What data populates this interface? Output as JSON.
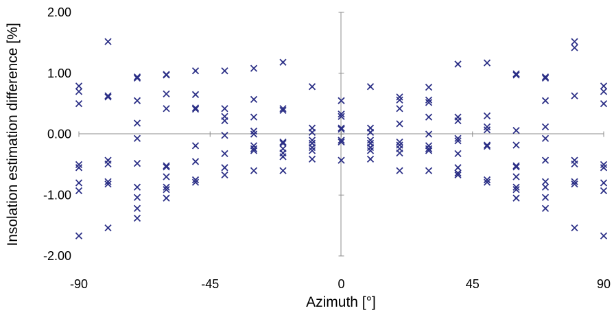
{
  "chart_data": {
    "type": "scatter",
    "xlabel": "Azimuth [°]",
    "ylabel": "Insolation estimation difference [%]",
    "xlim": [
      -90,
      90
    ],
    "ylim": [
      -2,
      2
    ],
    "x_ticks": [
      "-90",
      "-45",
      "0",
      "45",
      "90"
    ],
    "y_ticks": [
      "2.00",
      "1.00",
      "0.00",
      "-1.00",
      "-2.00"
    ],
    "grid": false,
    "marker": "x",
    "marker_color": "#2b2f86",
    "series": [
      {
        "points": [
          [
            -90,
            0.79
          ],
          [
            -90,
            0.7
          ],
          [
            -90,
            0.5
          ],
          [
            -90,
            -0.5
          ],
          [
            -90,
            -0.55
          ],
          [
            -90,
            -0.8
          ],
          [
            -90,
            -0.93
          ],
          [
            -90,
            -1.67
          ],
          [
            -80,
            1.52
          ],
          [
            -80,
            0.63
          ],
          [
            -80,
            0.61
          ],
          [
            -80,
            -0.43
          ],
          [
            -80,
            -0.49
          ],
          [
            -80,
            -0.78
          ],
          [
            -80,
            -0.82
          ],
          [
            -80,
            -1.54
          ],
          [
            -70,
            0.94
          ],
          [
            -70,
            0.92
          ],
          [
            -70,
            0.55
          ],
          [
            -70,
            0.18
          ],
          [
            -70,
            -0.07
          ],
          [
            -70,
            -0.48
          ],
          [
            -70,
            -0.87
          ],
          [
            -70,
            -1.04
          ],
          [
            -70,
            -1.22
          ],
          [
            -70,
            -1.38
          ],
          [
            -60,
            0.98
          ],
          [
            -60,
            0.97
          ],
          [
            -60,
            0.66
          ],
          [
            -60,
            0.42
          ],
          [
            -60,
            -0.52
          ],
          [
            -60,
            -0.54
          ],
          [
            -60,
            -0.7
          ],
          [
            -60,
            -0.87
          ],
          [
            -60,
            -0.91
          ],
          [
            -60,
            -1.05
          ],
          [
            -50,
            1.04
          ],
          [
            -50,
            0.65
          ],
          [
            -50,
            0.43
          ],
          [
            -50,
            0.41
          ],
          [
            -50,
            -0.19
          ],
          [
            -50,
            -0.45
          ],
          [
            -50,
            -0.75
          ],
          [
            -50,
            -0.79
          ],
          [
            -40,
            1.04
          ],
          [
            -40,
            0.42
          ],
          [
            -40,
            0.29
          ],
          [
            -40,
            0.22
          ],
          [
            -40,
            -0.02
          ],
          [
            -40,
            -0.32
          ],
          [
            -40,
            -0.55
          ],
          [
            -40,
            -0.67
          ],
          [
            -30,
            1.08
          ],
          [
            -30,
            0.57
          ],
          [
            -30,
            0.28
          ],
          [
            -30,
            0.05
          ],
          [
            -30,
            0.0
          ],
          [
            -30,
            -0.19
          ],
          [
            -30,
            -0.24
          ],
          [
            -30,
            -0.27
          ],
          [
            -30,
            -0.6
          ],
          [
            -20,
            1.18
          ],
          [
            -20,
            0.42
          ],
          [
            -20,
            0.39
          ],
          [
            -20,
            -0.13
          ],
          [
            -20,
            -0.15
          ],
          [
            -20,
            -0.24
          ],
          [
            -20,
            -0.31
          ],
          [
            -20,
            -0.37
          ],
          [
            -20,
            -0.6
          ],
          [
            -10,
            0.78
          ],
          [
            -10,
            0.1
          ],
          [
            -10,
            0.03
          ],
          [
            -10,
            -0.1
          ],
          [
            -10,
            -0.15
          ],
          [
            -10,
            -0.22
          ],
          [
            -10,
            -0.27
          ],
          [
            -10,
            -0.41
          ],
          [
            0,
            0.55
          ],
          [
            0,
            0.33
          ],
          [
            0,
            0.29
          ],
          [
            0,
            0.1
          ],
          [
            0,
            0.08
          ],
          [
            0,
            -0.1
          ],
          [
            0,
            -0.13
          ],
          [
            0,
            -0.43
          ],
          [
            10,
            0.78
          ],
          [
            10,
            0.1
          ],
          [
            10,
            0.03
          ],
          [
            10,
            -0.1
          ],
          [
            10,
            -0.15
          ],
          [
            10,
            -0.22
          ],
          [
            10,
            -0.27
          ],
          [
            10,
            -0.41
          ],
          [
            20,
            0.61
          ],
          [
            20,
            0.56
          ],
          [
            20,
            0.42
          ],
          [
            20,
            0.17
          ],
          [
            20,
            -0.13
          ],
          [
            20,
            -0.18
          ],
          [
            20,
            -0.24
          ],
          [
            20,
            -0.31
          ],
          [
            20,
            -0.6
          ],
          [
            30,
            0.77
          ],
          [
            30,
            0.56
          ],
          [
            30,
            0.52
          ],
          [
            30,
            0.28
          ],
          [
            30,
            0.0
          ],
          [
            30,
            -0.19
          ],
          [
            30,
            -0.24
          ],
          [
            30,
            -0.27
          ],
          [
            30,
            -0.6
          ],
          [
            40,
            1.15
          ],
          [
            40,
            0.28
          ],
          [
            40,
            0.22
          ],
          [
            40,
            -0.07
          ],
          [
            40,
            -0.11
          ],
          [
            40,
            -0.32
          ],
          [
            40,
            -0.55
          ],
          [
            40,
            -0.64
          ],
          [
            40,
            -0.67
          ],
          [
            50,
            1.17
          ],
          [
            50,
            0.3
          ],
          [
            50,
            0.12
          ],
          [
            50,
            0.07
          ],
          [
            50,
            -0.18
          ],
          [
            50,
            -0.2
          ],
          [
            50,
            -0.75
          ],
          [
            50,
            -0.79
          ],
          [
            60,
            0.99
          ],
          [
            60,
            0.97
          ],
          [
            60,
            0.06
          ],
          [
            60,
            -0.18
          ],
          [
            60,
            -0.52
          ],
          [
            60,
            -0.54
          ],
          [
            60,
            -0.7
          ],
          [
            60,
            -0.87
          ],
          [
            60,
            -0.91
          ],
          [
            60,
            -1.05
          ],
          [
            70,
            0.94
          ],
          [
            70,
            0.92
          ],
          [
            70,
            0.55
          ],
          [
            70,
            0.12
          ],
          [
            70,
            -0.07
          ],
          [
            70,
            -0.43
          ],
          [
            70,
            -0.78
          ],
          [
            70,
            -0.87
          ],
          [
            70,
            -1.04
          ],
          [
            70,
            -1.22
          ],
          [
            80,
            1.52
          ],
          [
            80,
            1.42
          ],
          [
            80,
            0.63
          ],
          [
            80,
            -0.43
          ],
          [
            80,
            -0.49
          ],
          [
            80,
            -0.78
          ],
          [
            80,
            -0.82
          ],
          [
            80,
            -1.54
          ],
          [
            90,
            0.79
          ],
          [
            90,
            0.7
          ],
          [
            90,
            0.5
          ],
          [
            90,
            -0.5
          ],
          [
            90,
            -0.55
          ],
          [
            90,
            -0.8
          ],
          [
            90,
            -0.93
          ],
          [
            90,
            -1.67
          ]
        ]
      }
    ]
  }
}
